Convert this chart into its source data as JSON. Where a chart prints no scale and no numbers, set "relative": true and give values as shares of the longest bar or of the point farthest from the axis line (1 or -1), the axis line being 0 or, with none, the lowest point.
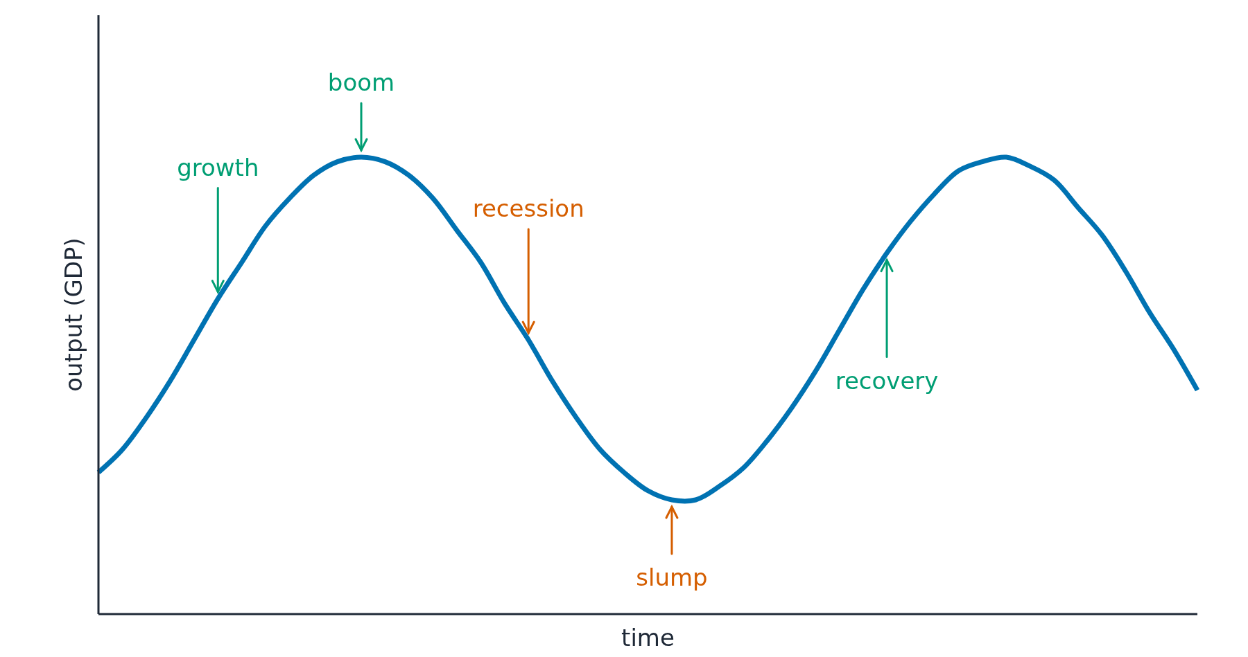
{
  "chart_data": {
    "type": "line",
    "relative": true,
    "xlabel": "time",
    "ylabel": "output (GDP)",
    "categories": [
      null,
      null,
      null,
      null,
      null,
      null,
      null,
      null,
      null,
      null,
      null,
      null,
      null,
      null,
      null,
      null,
      null,
      null,
      null,
      null,
      null,
      null,
      null,
      null,
      null,
      null,
      null,
      null,
      null,
      null,
      null,
      null,
      null,
      null,
      null,
      null,
      null,
      null,
      null,
      null,
      null,
      null,
      null,
      null,
      null,
      null,
      null
    ],
    "series": [
      {
        "color": "#0072b2",
        "values": [
          0.31,
          0.36,
          0.43,
          0.51,
          0.6,
          0.69,
          0.77,
          0.85,
          0.91,
          0.96,
          0.99,
          1.0,
          0.99,
          0.96,
          0.91,
          0.84,
          0.77,
          0.68,
          0.6,
          0.51,
          0.43,
          0.36,
          0.31,
          0.27,
          0.25,
          0.25,
          0.28,
          0.32,
          0.38,
          0.45,
          0.53,
          0.62,
          0.71,
          0.79,
          0.86,
          0.92,
          0.97,
          0.99,
          1.0,
          0.98,
          0.95,
          0.89,
          0.83,
          0.75,
          0.66,
          0.58,
          0.49
        ]
      }
    ],
    "annotations": [
      "growth",
      "boom",
      "recession",
      "slump",
      "recovery"
    ],
    "marker": "none",
    "line_style": "solid"
  }
}
